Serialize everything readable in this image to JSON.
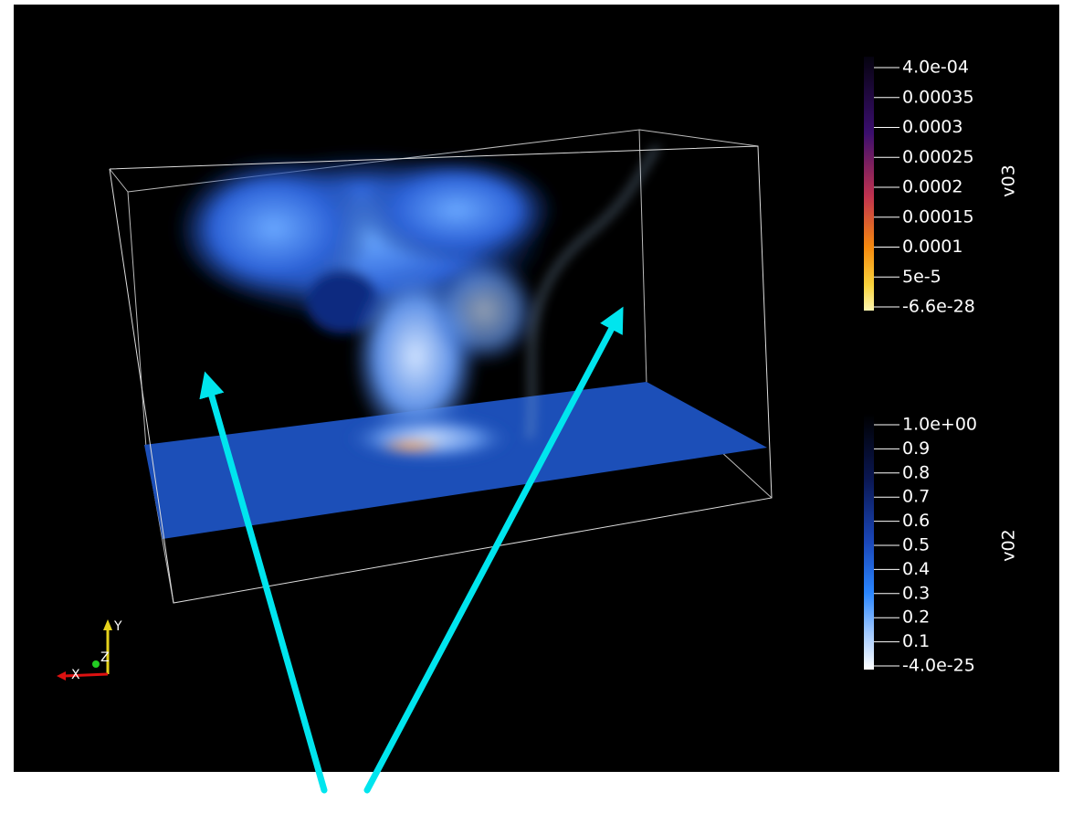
{
  "color_bars": [
    {
      "title": "v03",
      "ticks": [
        "4.0e-04",
        "0.00035",
        "0.0003",
        "0.00025",
        "0.0002",
        "0.00015",
        "0.0001",
        "5e-5",
        "-6.6e-28"
      ]
    },
    {
      "title": "v02",
      "ticks": [
        "1.0e+00",
        "0.9",
        "0.8",
        "0.7",
        "0.6",
        "0.5",
        "0.4",
        "0.3",
        "0.2",
        "0.1",
        "-4.0e-25"
      ]
    }
  ],
  "orientation_axes": {
    "x": "X",
    "y": "Y",
    "z": "Z"
  }
}
